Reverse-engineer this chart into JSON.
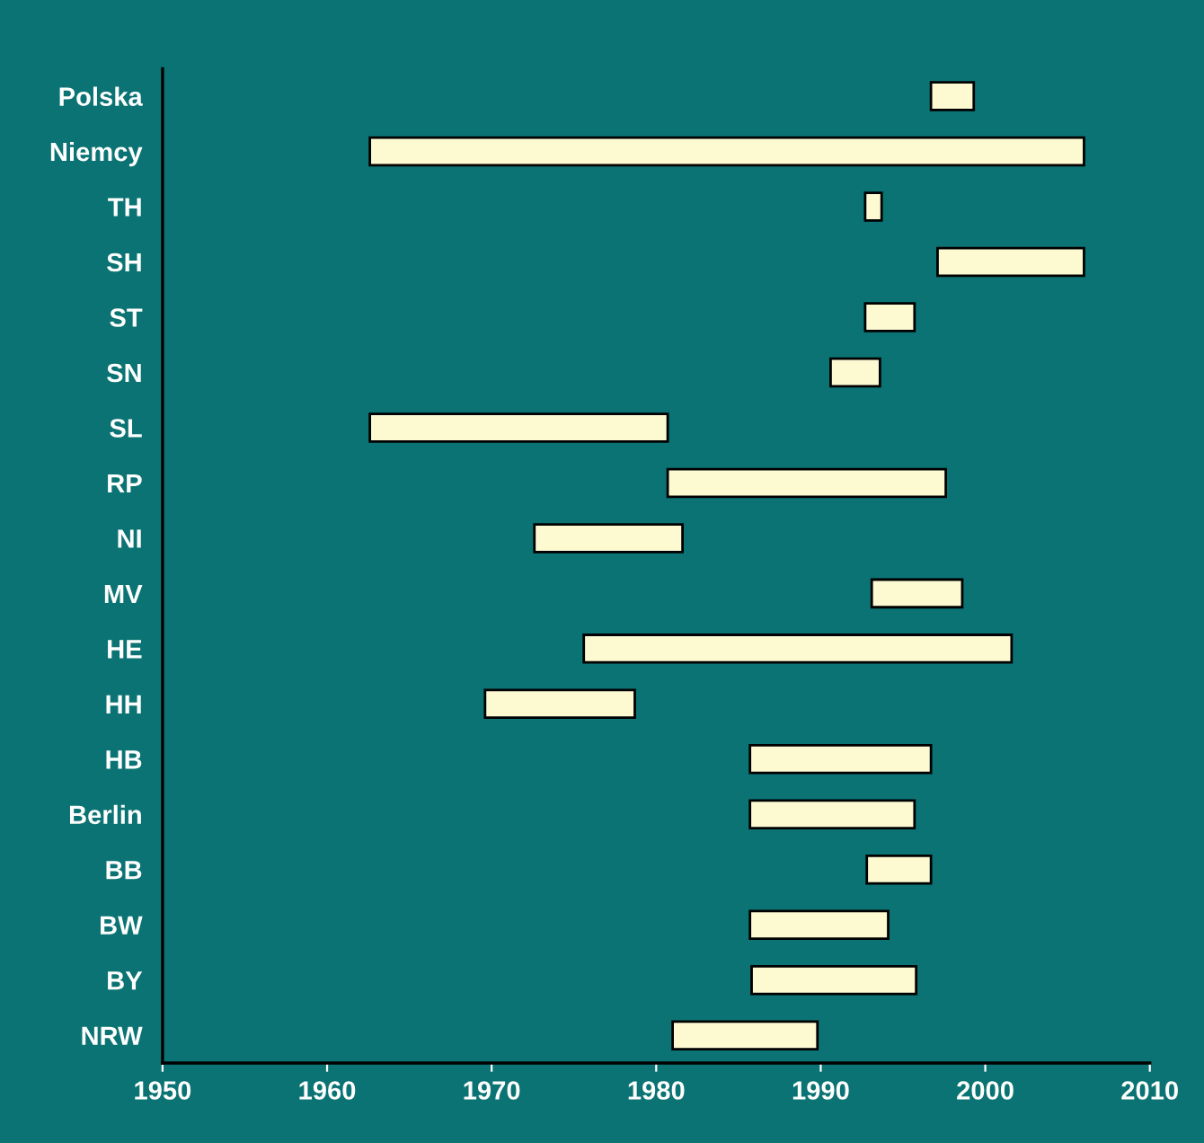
{
  "chart_data": {
    "type": "bar",
    "orientation": "horizontal",
    "categories": [
      "Polska",
      "Niemcy",
      "TH",
      "SH",
      "ST",
      "SN",
      "SL",
      "RP",
      "NI",
      "MV",
      "HE",
      "HH",
      "HB",
      "Berlin",
      "BB",
      "BW",
      "BY",
      "NRW"
    ],
    "base": [
      1996.7,
      1962.6,
      1992.7,
      1997.1,
      1992.7,
      1990.6,
      1962.6,
      1980.7,
      1972.6,
      1993.1,
      1975.6,
      1969.6,
      1985.7,
      1985.7,
      1992.8,
      1985.7,
      1985.8,
      1981.0
    ],
    "values": [
      2.6,
      43.4,
      1.0,
      8.9,
      3.0,
      3.0,
      18.1,
      16.9,
      9.0,
      5.5,
      26.0,
      9.1,
      11.0,
      10.0,
      3.9,
      8.4,
      10.0,
      8.8
    ],
    "color": "#fdfad2",
    "xlim": [
      1950,
      2010
    ],
    "xticks": [
      1950,
      1960,
      1970,
      1980,
      1990,
      2000,
      2010
    ],
    "grid": false,
    "legend": false
  }
}
